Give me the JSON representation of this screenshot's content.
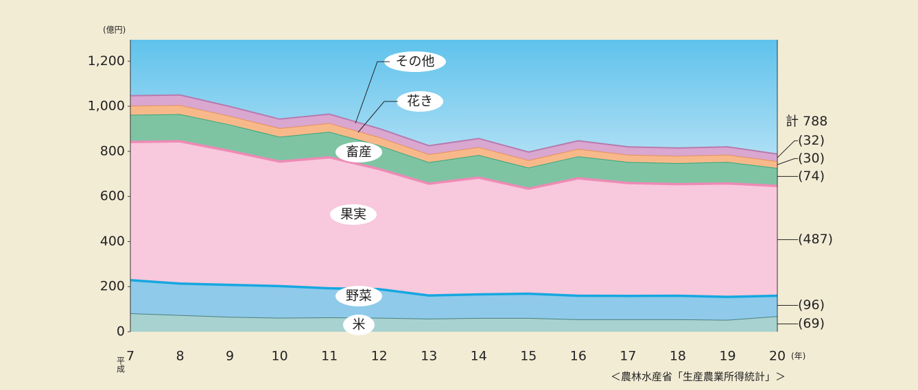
{
  "chart_data": {
    "type": "stacked_area",
    "y_unit": "(億円)",
    "x_unit": "(年)",
    "x_prefix": "平成",
    "source": "＜農林水産省「生産農業所得統計」＞",
    "total_label": "計 788",
    "categories": [
      "7",
      "8",
      "9",
      "10",
      "11",
      "12",
      "13",
      "14",
      "15",
      "16",
      "17",
      "18",
      "19",
      "20"
    ],
    "ylim": [
      0,
      1295
    ],
    "yticks": [
      0,
      200,
      400,
      600,
      800,
      {
        "value": 1000,
        "label": "1,000"
      },
      {
        "value": 1200,
        "label": "1,200"
      }
    ],
    "series": [
      {
        "name": "米",
        "color": "#a7d2cf",
        "edge": "#4b7f7c",
        "end_label": "(69)",
        "values": [
          82,
          74,
          66,
          62,
          64,
          62,
          58,
          61,
          61,
          55,
          55,
          55,
          53,
          69
        ]
      },
      {
        "name": "野菜",
        "color": "#8fcaea",
        "edge": "#16a7e0",
        "end_label": "(96)",
        "values": [
          152,
          145,
          147,
          146,
          134,
          132,
          108,
          110,
          113,
          110,
          109,
          110,
          107,
          96
        ]
      },
      {
        "name": "果実",
        "color": "#f8c8dc",
        "edge": "#ee8ab5",
        "end_label": "(487)",
        "values": [
          613,
          631,
          594,
          552,
          581,
          533,
          496,
          518,
          466,
          521,
          501,
          495,
          503,
          487
        ]
      },
      {
        "name": "畜産",
        "color": "#7ec4a3",
        "edge": "#35a57d",
        "end_label": "(74)",
        "values": [
          115,
          115,
          112,
          105,
          108,
          100,
          90,
          95,
          88,
          92,
          88,
          88,
          90,
          74
        ]
      },
      {
        "name": "花き",
        "color": "#f8b98a",
        "edge": "#e8905a",
        "end_label": "(30)",
        "values": [
          40,
          40,
          38,
          38,
          38,
          36,
          35,
          35,
          33,
          33,
          32,
          32,
          32,
          30
        ]
      },
      {
        "name": "その他",
        "color": "#d9a7cf",
        "edge": "#b77aae",
        "end_label": "(32)",
        "values": [
          45,
          45,
          42,
          40,
          40,
          38,
          38,
          38,
          36,
          36,
          35,
          35,
          35,
          32
        ]
      }
    ]
  }
}
